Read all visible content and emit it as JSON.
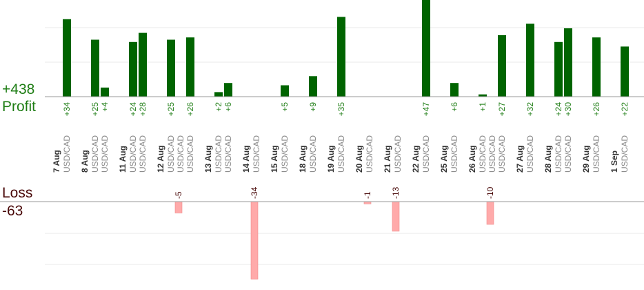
{
  "summary": {
    "profit_total": "+438",
    "profit_label": "Profit",
    "loss_label": "Loss",
    "loss_total": "-63"
  },
  "colors": {
    "profit_bar": "#006400",
    "profit_text": "#1e7d14",
    "loss_bar": "#ffaaaa",
    "loss_text": "#4a0a0a",
    "pair_text": "#888888",
    "date_text": "#333333",
    "grid": "#e8e8e8",
    "axis": "#999999"
  },
  "chart_data": {
    "type": "bar",
    "profit_axis_max": 60,
    "loss_axis_max": 34,
    "days": [
      {
        "date": "7 Aug",
        "trades": [
          {
            "pair": "USD/CAD",
            "value": 34
          }
        ]
      },
      {
        "date": "8 Aug",
        "trades": [
          {
            "pair": "USD/CAD",
            "value": 25
          },
          {
            "pair": "USD/CAD",
            "value": 4
          }
        ]
      },
      {
        "date": "11 Aug",
        "trades": [
          {
            "pair": "USD/CAD",
            "value": 24
          },
          {
            "pair": "USD/CAD",
            "value": 28
          }
        ]
      },
      {
        "date": "12 Aug",
        "trades": [
          {
            "pair": "USD/CAD",
            "value": 25
          },
          {
            "pair": "USD/CAD",
            "value": -5
          },
          {
            "pair": "USD/CAD",
            "value": 26
          }
        ]
      },
      {
        "date": "13 Aug",
        "trades": [
          {
            "pair": "USD/CAD",
            "value": 2
          },
          {
            "pair": "USD/CAD",
            "value": 6
          }
        ]
      },
      {
        "date": "14 Aug",
        "trades": [
          {
            "pair": "USD/CAD",
            "value": -34
          }
        ]
      },
      {
        "date": "15 Aug",
        "trades": [
          {
            "pair": "USD/CAD",
            "value": 5
          }
        ]
      },
      {
        "date": "18 Aug",
        "trades": [
          {
            "pair": "USD/CAD",
            "value": 9
          }
        ]
      },
      {
        "date": "19 Aug",
        "trades": [
          {
            "pair": "USD/CAD",
            "value": 35
          }
        ]
      },
      {
        "date": "20 Aug",
        "trades": [
          {
            "pair": "USD/CAD",
            "value": -1
          }
        ]
      },
      {
        "date": "21 Aug",
        "trades": [
          {
            "pair": "USD/CAD",
            "value": -13
          }
        ]
      },
      {
        "date": "22 Aug",
        "trades": [
          {
            "pair": "USD/CAD",
            "value": 47
          }
        ]
      },
      {
        "date": "25 Aug",
        "trades": [
          {
            "pair": "USD/CAD",
            "value": 6
          }
        ]
      },
      {
        "date": "26 Aug",
        "trades": [
          {
            "pair": "USD/CAD",
            "value": 1
          },
          {
            "pair": "USD/CAD",
            "value": -10
          },
          {
            "pair": "USD/CAD",
            "value": 27
          }
        ]
      },
      {
        "date": "27 Aug",
        "trades": [
          {
            "pair": "USD/CAD",
            "value": 32
          }
        ]
      },
      {
        "date": "28 Aug",
        "trades": [
          {
            "pair": "USD/CAD",
            "value": 24
          },
          {
            "pair": "USD/CAD",
            "value": 30
          }
        ]
      },
      {
        "date": "29 Aug",
        "trades": [
          {
            "pair": "USD/CAD",
            "value": 26
          }
        ]
      },
      {
        "date": "1 Sep",
        "trades": [
          {
            "pair": "USD/CAD",
            "value": 22
          }
        ]
      }
    ]
  }
}
